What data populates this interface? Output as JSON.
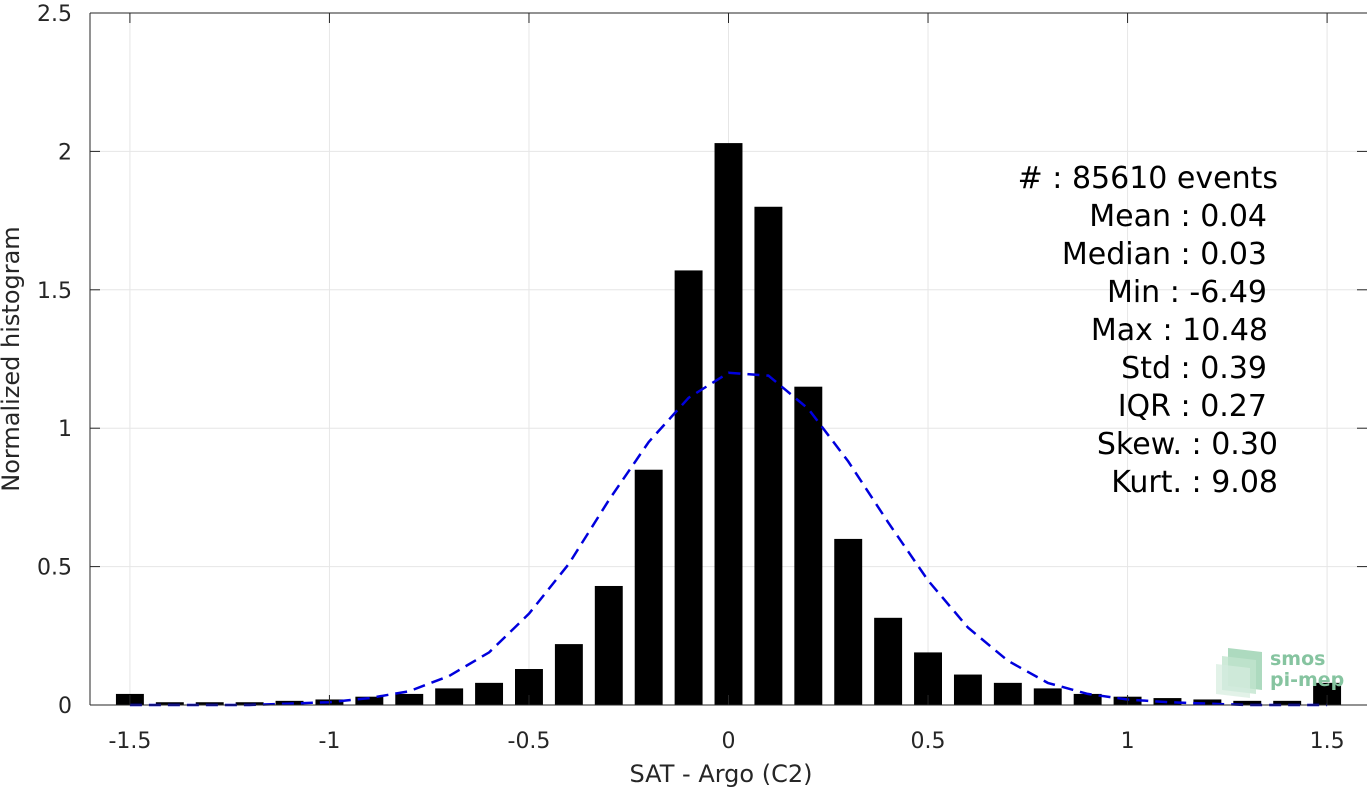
{
  "chart_data": {
    "type": "bar",
    "xlabel": "SAT - Argo (C2)",
    "ylabel": "Normalized histogram",
    "xlim": [
      -1.6,
      1.6
    ],
    "ylim": [
      0,
      2.5
    ],
    "xticks": [
      -1.5,
      -1,
      -0.5,
      0,
      0.5,
      1,
      1.5
    ],
    "xtick_labels": [
      "-1.5",
      "-1",
      "-0.5",
      "0",
      "0.5",
      "1",
      "1.5"
    ],
    "yticks": [
      0,
      0.5,
      1,
      1.5,
      2,
      2.5
    ],
    "ytick_labels": [
      "0",
      "0.5",
      "1",
      "1.5",
      "2",
      "2.5"
    ],
    "grid": true,
    "bar_width": 0.07,
    "bar_color": "#000000",
    "bins": [
      -1.5,
      -1.4,
      -1.3,
      -1.2,
      -1.1,
      -1.0,
      -0.9,
      -0.8,
      -0.7,
      -0.6,
      -0.5,
      -0.4,
      -0.3,
      -0.2,
      -0.1,
      0.0,
      0.1,
      0.2,
      0.3,
      0.4,
      0.5,
      0.6,
      0.7,
      0.8,
      0.9,
      1.0,
      1.1,
      1.2,
      1.3,
      1.4,
      1.5
    ],
    "values": [
      0.04,
      0.01,
      0.01,
      0.01,
      0.015,
      0.02,
      0.03,
      0.04,
      0.06,
      0.08,
      0.13,
      0.22,
      0.43,
      0.85,
      1.57,
      2.03,
      1.8,
      1.15,
      0.6,
      0.315,
      0.19,
      0.11,
      0.08,
      0.06,
      0.04,
      0.03,
      0.025,
      0.02,
      0.015,
      0.015,
      0.08
    ],
    "fit_curve": {
      "style": "dashed",
      "color": "#0000dd",
      "x": [
        -1.5,
        -1.4,
        -1.3,
        -1.2,
        -1.1,
        -1.0,
        -0.9,
        -0.8,
        -0.7,
        -0.6,
        -0.5,
        -0.4,
        -0.3,
        -0.2,
        -0.1,
        0.0,
        0.1,
        0.2,
        0.3,
        0.4,
        0.5,
        0.6,
        0.7,
        0.8,
        0.9,
        1.0,
        1.1,
        1.2,
        1.3,
        1.4,
        1.5
      ],
      "y": [
        0.0,
        0.0,
        0.0,
        0.0,
        0.005,
        0.01,
        0.025,
        0.05,
        0.105,
        0.19,
        0.33,
        0.51,
        0.74,
        0.95,
        1.11,
        1.2,
        1.19,
        1.07,
        0.88,
        0.66,
        0.45,
        0.28,
        0.16,
        0.08,
        0.04,
        0.02,
        0.01,
        0.005,
        0.0,
        0.0,
        0.0
      ]
    },
    "stats_lines": [
      "#  : 85610 events",
      "Mean : 0.04",
      "Median : 0.03",
      "Min : -6.49",
      "Max : 10.48",
      "Std : 0.39",
      "IQR : 0.27",
      "Skew. : 0.30",
      "Kurt. : 9.08"
    ]
  },
  "logo": {
    "line1": "smos",
    "line2": "pi-mep",
    "color": "#86c4a0"
  }
}
